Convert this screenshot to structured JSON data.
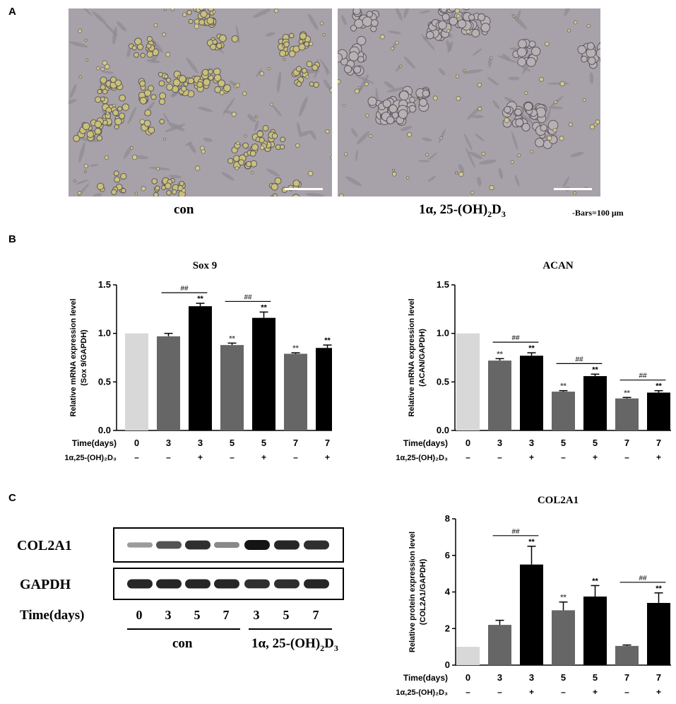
{
  "panel_a": {
    "letter": "A",
    "images": [
      {
        "caption": "con"
      },
      {
        "caption_parts": [
          "1α, 25-(OH)",
          "2",
          "D",
          "3"
        ]
      }
    ],
    "scale_note": "-Bars=100 μm"
  },
  "panel_b": {
    "letter": "B"
  },
  "panel_c": {
    "letter": "C",
    "blot": {
      "rows": [
        "COL2A1",
        "GAPDH"
      ],
      "time_label": "Time(days)",
      "lanes": [
        "0",
        "3",
        "5",
        "7",
        "3",
        "5",
        "7"
      ],
      "group_con": "con",
      "group_treated_parts": [
        "1α, 25-(OH)",
        "2",
        "D",
        "3"
      ],
      "col2a1_intensity": [
        0.25,
        0.65,
        0.85,
        0.35,
        1.0,
        0.9,
        0.85
      ],
      "gapdh_intensity": [
        0.9,
        0.9,
        0.9,
        0.9,
        0.85,
        0.85,
        0.9
      ]
    }
  },
  "colors": {
    "control": "#d8d8d8",
    "untreated": "#666666",
    "treated": "#000000"
  },
  "chart_data": [
    {
      "type": "bar",
      "title": "Sox 9",
      "ylabel_lines": [
        "Relative mRNA expression level",
        "(Sox 9/GAPDH)"
      ],
      "ylim": [
        0,
        1.5
      ],
      "yticks": [
        "0.0",
        "0.5",
        "1.0",
        "1.5"
      ],
      "row_labels": [
        "Time(days)",
        "1α,25-(OH)₂D₃"
      ],
      "categories": [
        "0",
        "3",
        "3",
        "5",
        "5",
        "7",
        "7"
      ],
      "treatment": [
        "–",
        "–",
        "+",
        "–",
        "+",
        "–",
        "+"
      ],
      "values": [
        1.0,
        0.97,
        1.28,
        0.88,
        1.16,
        0.79,
        0.85
      ],
      "errors": [
        0.0,
        0.03,
        0.03,
        0.02,
        0.06,
        0.01,
        0.03
      ],
      "stars": [
        "",
        "",
        "**",
        "**",
        "**",
        "**",
        "**"
      ],
      "comparisons": [
        {
          "from": 1,
          "to": 2,
          "label": "##"
        },
        {
          "from": 3,
          "to": 4,
          "label": "##"
        }
      ]
    },
    {
      "type": "bar",
      "title": "ACAN",
      "ylabel_lines": [
        "Relative mRNA expression level",
        "(ACAN/GAPDH)"
      ],
      "ylim": [
        0,
        1.5
      ],
      "yticks": [
        "0.0",
        "0.5",
        "1.0",
        "1.5"
      ],
      "row_labels": [
        "Time(days)",
        "1α,25-(OH)₂D₃"
      ],
      "categories": [
        "0",
        "3",
        "3",
        "5",
        "5",
        "7",
        "7"
      ],
      "treatment": [
        "–",
        "–",
        "+",
        "–",
        "+",
        "–",
        "+"
      ],
      "values": [
        1.0,
        0.72,
        0.77,
        0.4,
        0.56,
        0.33,
        0.39
      ],
      "errors": [
        0.0,
        0.02,
        0.03,
        0.01,
        0.02,
        0.01,
        0.02
      ],
      "stars": [
        "",
        "**",
        "**",
        "**",
        "**",
        "**",
        "**"
      ],
      "comparisons": [
        {
          "from": 1,
          "to": 2,
          "label": "##"
        },
        {
          "from": 3,
          "to": 4,
          "label": "##"
        },
        {
          "from": 5,
          "to": 6,
          "label": "##"
        }
      ]
    },
    {
      "type": "bar",
      "title": "COL2A1",
      "ylabel_lines": [
        "Relative protein expression level",
        "(COL2A1/GAPDH)"
      ],
      "ylim": [
        0,
        8
      ],
      "yticks": [
        "0",
        "2",
        "4",
        "6",
        "8"
      ],
      "row_labels": [
        "Time(days)",
        "1α,25-(OH)₂D₃"
      ],
      "categories": [
        "0",
        "3",
        "3",
        "5",
        "5",
        "7",
        "7"
      ],
      "treatment": [
        "–",
        "–",
        "+",
        "–",
        "+",
        "–",
        "+"
      ],
      "values": [
        1.0,
        2.2,
        5.5,
        3.0,
        3.75,
        1.05,
        3.4
      ],
      "errors": [
        0.0,
        0.25,
        1.0,
        0.45,
        0.6,
        0.05,
        0.55
      ],
      "stars": [
        "",
        "",
        "**",
        "**",
        "**",
        "",
        "**"
      ],
      "comparisons": [
        {
          "from": 1,
          "to": 2,
          "label": "##"
        },
        {
          "from": 5,
          "to": 6,
          "label": "##"
        }
      ]
    }
  ]
}
